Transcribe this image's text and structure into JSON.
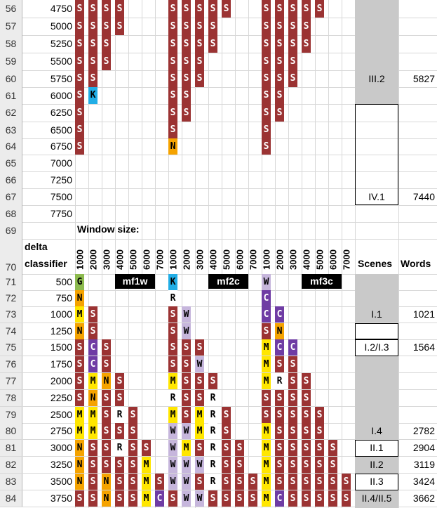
{
  "colors": {
    "S": "#9b3333",
    "K": "#22aee6",
    "N": "#f5a300",
    "G": "#8cba4e",
    "R": "#ffffff",
    "W": "#c6b6dc",
    "M": "#ffe600",
    "C": "#6f3ca4",
    "grey": "#c9c9c9"
  },
  "header": {
    "window_size": "Window size:",
    "delta": "delta",
    "classifier": "classifier",
    "scenes": "Scenes",
    "words": "Words",
    "window_labels": [
      "1000",
      "2000",
      "3000",
      "4000",
      "5000",
      "6000",
      "7000",
      "1000",
      "2000",
      "3000",
      "4000",
      "5000",
      "6000",
      "7000",
      "1000",
      "2000",
      "3000",
      "4000",
      "5000",
      "6000",
      "7000"
    ]
  },
  "tags": [
    "mf1w",
    "mf2c",
    "mf3c"
  ],
  "upper_rows": [
    {
      "num": "56",
      "val": "4750",
      "a": "SSSS",
      "b": "SSSSS",
      "c": "SSSSS",
      "scene": "",
      "words": ""
    },
    {
      "num": "57",
      "val": "5000",
      "a": "SSSS",
      "b": "SSSS",
      "c": "SSSS",
      "scene": "",
      "words": ""
    },
    {
      "num": "58",
      "val": "5250",
      "a": "SSS",
      "b": "SSSS",
      "c": "SSSS",
      "scene": "",
      "words": ""
    },
    {
      "num": "59",
      "val": "5500",
      "a": "SSS",
      "b": "SSS",
      "c": "SSS",
      "scene": "",
      "words": ""
    },
    {
      "num": "60",
      "val": "5750",
      "a": "SS",
      "b": "SSS",
      "c": "SSS",
      "scene": "III.2",
      "words": "5827"
    },
    {
      "num": "61",
      "val": "6000",
      "a": "SK",
      "b": "SS",
      "c": "SS",
      "scene": "",
      "words": ""
    },
    {
      "num": "62",
      "val": "6250",
      "a": "S",
      "b": "SS",
      "c": "SS",
      "scene": "",
      "words": ""
    },
    {
      "num": "63",
      "val": "6500",
      "a": "S",
      "b": "S",
      "c": "S",
      "scene": "",
      "words": ""
    },
    {
      "num": "64",
      "val": "6750",
      "a": "S",
      "b": "N",
      "c": "S",
      "scene": "",
      "words": ""
    },
    {
      "num": "65",
      "val": "7000",
      "a": "",
      "b": "",
      "c": "",
      "scene": "",
      "words": ""
    },
    {
      "num": "66",
      "val": "7250",
      "a": "",
      "b": "",
      "c": "",
      "scene": "",
      "words": ""
    },
    {
      "num": "67",
      "val": "7500",
      "a": "",
      "b": "",
      "c": "",
      "scene": "IV.1",
      "words": "7440"
    },
    {
      "num": "68",
      "val": "7750",
      "a": "",
      "b": "",
      "c": "",
      "scene": "",
      "words": ""
    },
    {
      "num": "69",
      "val": "",
      "a": "",
      "b": "",
      "c": "",
      "scene": "",
      "words": ""
    },
    {
      "num": "70",
      "val": "",
      "a": "",
      "b": "",
      "c": "",
      "scene": "",
      "words": ""
    }
  ],
  "lower_rows": [
    {
      "num": "71",
      "val": "500",
      "a": "G",
      "b": "K",
      "c": "W",
      "scene": "",
      "words": ""
    },
    {
      "num": "72",
      "val": "750",
      "a": "N",
      "b": "R",
      "c": "C",
      "scene": "",
      "words": ""
    },
    {
      "num": "73",
      "val": "1000",
      "a": "MS",
      "b": "SW",
      "c": "CC",
      "scene": "I.1",
      "words": "1021"
    },
    {
      "num": "74",
      "val": "1250",
      "a": "NS",
      "b": "SW",
      "c": "SN",
      "scene": "",
      "words": ""
    },
    {
      "num": "75",
      "val": "1500",
      "a": "SCS",
      "b": "SSS",
      "c": "MCC",
      "scene": "I.2/I.3",
      "words": "1564"
    },
    {
      "num": "76",
      "val": "1750",
      "a": "SCS",
      "b": "SSW",
      "c": "MSS",
      "scene": "",
      "words": ""
    },
    {
      "num": "77",
      "val": "2000",
      "a": "SMNS",
      "b": "MSSS",
      "c": "MRSS",
      "scene": "",
      "words": ""
    },
    {
      "num": "78",
      "val": "2250",
      "a": "SNSS",
      "b": "RSSR",
      "c": "SSSS",
      "scene": "",
      "words": ""
    },
    {
      "num": "79",
      "val": "2500",
      "a": "MMSRS",
      "b": "MSMRS",
      "c": "SSSSS",
      "scene": "",
      "words": ""
    },
    {
      "num": "80",
      "val": "2750",
      "a": "MMSSS",
      "b": "WWMRS",
      "c": "MSSSS",
      "scene": "I.4",
      "words": "2782"
    },
    {
      "num": "81",
      "val": "3000",
      "a": "NSSRSS",
      "b": "WMSRSS",
      "c": "MSSSSS",
      "scene": "II.1",
      "words": "2904"
    },
    {
      "num": "82",
      "val": "3250",
      "a": "NSSSSM",
      "b": "WWWRSS",
      "c": "MSSSSS",
      "scene": "II.2",
      "words": "3119"
    },
    {
      "num": "83",
      "val": "3500",
      "a": "NSNSSMS",
      "b": "WWSRSSS",
      "c": "MSSSSSS",
      "scene": "II.3",
      "words": "3424"
    },
    {
      "num": "84",
      "val": "3750",
      "a": "SSNSSMC",
      "b": "SWWSSSS",
      "c": "MCSSSSS",
      "scene": "II.4/II.5",
      "words": "3662"
    }
  ]
}
